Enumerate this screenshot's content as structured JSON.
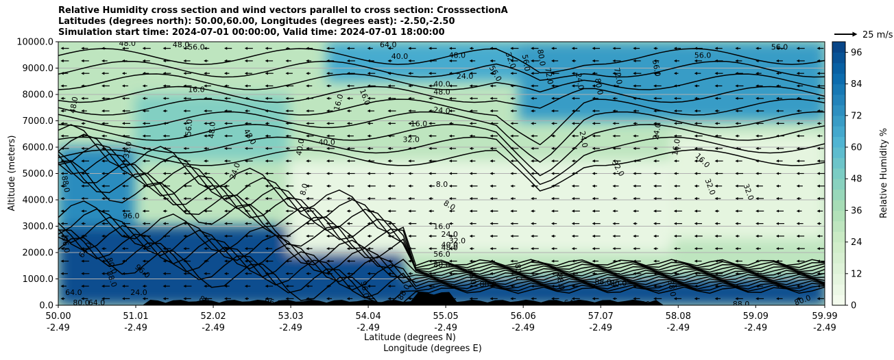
{
  "chart_data": {
    "type": "heatmap",
    "title_lines": [
      "Relative Humidity cross section and wind vectors parallel to cross section: CrosssectionA",
      "Latitudes (degrees north): 50.00,60.00, Longitudes (degrees east): -2.50,-2.50",
      "Simulation start time: 2024-07-01 00:00:00, Valid time: 2024-07-01 18:00:00"
    ],
    "xlabel_lines": [
      "Latitude (degrees N)",
      "Longitude (degrees E)"
    ],
    "ylabel": "Altitude (meters)",
    "colorbar_label": "Relative Humidity %",
    "colormap": "GnBu",
    "x_ticks": [
      {
        "lat": "50.00",
        "lon": "-2.49"
      },
      {
        "lat": "51.01",
        "lon": "-2.49"
      },
      {
        "lat": "52.02",
        "lon": "-2.49"
      },
      {
        "lat": "53.03",
        "lon": "-2.49"
      },
      {
        "lat": "54.04",
        "lon": "-2.49"
      },
      {
        "lat": "55.05",
        "lon": "-2.49"
      },
      {
        "lat": "56.06",
        "lon": "-2.49"
      },
      {
        "lat": "57.07",
        "lon": "-2.49"
      },
      {
        "lat": "58.08",
        "lon": "-2.49"
      },
      {
        "lat": "59.09",
        "lon": "-2.49"
      },
      {
        "lat": "59.99",
        "lon": "-2.49"
      }
    ],
    "xlim": [
      50.0,
      59.99
    ],
    "y_ticks": [
      "0.0",
      "1000.0",
      "2000.0",
      "3000.0",
      "4000.0",
      "5000.0",
      "6000.0",
      "7000.0",
      "8000.0",
      "9000.0",
      "10000.0"
    ],
    "ylim": [
      0,
      10000
    ],
    "grid": "horizontal",
    "colorbar_ticks": [
      "0",
      "12",
      "24",
      "36",
      "48",
      "60",
      "72",
      "84",
      "96"
    ],
    "colorbar_range": [
      0,
      100
    ],
    "quiver_key": {
      "label": "25 m/s",
      "speed": 25
    },
    "wind_direction": "southward (toward lower latitude) along the section",
    "humidity_regions": [
      {
        "lat": [
          50.0,
          54.5
        ],
        "alt": [
          0,
          3000
        ],
        "rh": 96
      },
      {
        "lat": [
          54.5,
          60.0
        ],
        "alt": [
          0,
          1000
        ],
        "rh": 96
      },
      {
        "lat": [
          50.0,
          51.0
        ],
        "alt": [
          3000,
          6000
        ],
        "rh": 75
      },
      {
        "lat": [
          53.0,
          58.0
        ],
        "alt": [
          2000,
          5500
        ],
        "rh": 8
      },
      {
        "lat": [
          56.0,
          60.0
        ],
        "alt": [
          7000,
          10000
        ],
        "rh": 70
      },
      {
        "lat": [
          53.5,
          56.0
        ],
        "alt": [
          8500,
          10000
        ],
        "rh": 65
      },
      {
        "lat": [
          51.0,
          53.0
        ],
        "alt": [
          5500,
          8000
        ],
        "rh": 48
      },
      {
        "lat": [
          58.0,
          60.0
        ],
        "alt": [
          2500,
          6500
        ],
        "rh": 10
      }
    ],
    "contour_labels": [
      {
        "text": "48.0",
        "lat": 50.2,
        "alt": 7600,
        "rot": 80
      },
      {
        "text": "16.0",
        "lat": 51.8,
        "alt": 8200,
        "rot": 0
      },
      {
        "text": "56.0",
        "lat": 51.7,
        "alt": 6750,
        "rot": 85
      },
      {
        "text": "48.0",
        "lat": 52.0,
        "alt": 6650,
        "rot": 85
      },
      {
        "text": "48.0",
        "lat": 52.5,
        "alt": 6400,
        "rot": -60
      },
      {
        "text": "32.0",
        "lat": 50.9,
        "alt": 5900,
        "rot": 80
      },
      {
        "text": "40.0",
        "lat": 53.5,
        "alt": 6200,
        "rot": 0
      },
      {
        "text": "40.0",
        "lat": 53.15,
        "alt": 6000,
        "rot": 80
      },
      {
        "text": "24.0",
        "lat": 52.3,
        "alt": 5100,
        "rot": 70
      },
      {
        "text": "8.0",
        "lat": 53.2,
        "alt": 4400,
        "rot": 75
      },
      {
        "text": "32.0",
        "lat": 54.6,
        "alt": 6300,
        "rot": 0
      },
      {
        "text": "16.0",
        "lat": 54.0,
        "alt": 7900,
        "rot": -70
      },
      {
        "text": "16.0",
        "lat": 53.65,
        "alt": 7700,
        "rot": 75
      },
      {
        "text": "24.0",
        "lat": 55.0,
        "alt": 7400,
        "rot": -5
      },
      {
        "text": "40.0",
        "lat": 55.0,
        "alt": 8400,
        "rot": 0
      },
      {
        "text": "48.0",
        "lat": 55.0,
        "alt": 8100,
        "rot": 0
      },
      {
        "text": "24.0",
        "lat": 55.3,
        "alt": 8700,
        "rot": 0
      },
      {
        "text": "48.0",
        "lat": 55.2,
        "alt": 9500,
        "rot": 0
      },
      {
        "text": "64.0",
        "lat": 54.3,
        "alt": 9900,
        "rot": 0
      },
      {
        "text": "56.0",
        "lat": 51.8,
        "alt": 9800,
        "rot": 0
      },
      {
        "text": "48.0",
        "lat": 51.6,
        "alt": 9900,
        "rot": 0
      },
      {
        "text": "48.0",
        "lat": 50.9,
        "alt": 9950,
        "rot": 0
      },
      {
        "text": "8.0",
        "lat": 55.0,
        "alt": 4600,
        "rot": 0
      },
      {
        "text": "8.0",
        "lat": 55.1,
        "alt": 3800,
        "rot": -30
      },
      {
        "text": "16.0",
        "lat": 55.0,
        "alt": 3000,
        "rot": 0
      },
      {
        "text": "24.0",
        "lat": 55.1,
        "alt": 2700,
        "rot": 0
      },
      {
        "text": "32.0",
        "lat": 55.2,
        "alt": 2450,
        "rot": 0
      },
      {
        "text": "40.0",
        "lat": 55.1,
        "alt": 2300,
        "rot": 0
      },
      {
        "text": "48.0",
        "lat": 55.1,
        "alt": 2200,
        "rot": 0
      },
      {
        "text": "56.0",
        "lat": 55.0,
        "alt": 1950,
        "rot": 0
      },
      {
        "text": "80.0",
        "lat": 55.0,
        "alt": 1550,
        "rot": 0
      },
      {
        "text": "96.0",
        "lat": 50.95,
        "alt": 3400,
        "rot": 0
      },
      {
        "text": "88.0",
        "lat": 50.1,
        "alt": 4600,
        "rot": -80
      },
      {
        "text": "96.0",
        "lat": 50.1,
        "alt": 2300,
        "rot": -80
      },
      {
        "text": "64.0",
        "lat": 50.35,
        "alt": 2100,
        "rot": 55
      },
      {
        "text": "80.0",
        "lat": 50.7,
        "alt": 1500,
        "rot": -70
      },
      {
        "text": "96.0",
        "lat": 51.1,
        "alt": 1300,
        "rot": -40
      },
      {
        "text": "88.0",
        "lat": 50.7,
        "alt": 1000,
        "rot": -70
      },
      {
        "text": "64.0",
        "lat": 50.2,
        "alt": 500,
        "rot": 0
      },
      {
        "text": "80.0",
        "lat": 50.3,
        "alt": 100,
        "rot": 0
      },
      {
        "text": "64.0",
        "lat": 50.5,
        "alt": 100,
        "rot": 0
      },
      {
        "text": "24.0",
        "lat": 51.05,
        "alt": 500,
        "rot": 0
      },
      {
        "text": "88",
        "lat": 51.9,
        "alt": 200,
        "rot": -30
      },
      {
        "text": "96.0",
        "lat": 52.8,
        "alt": 120,
        "rot": -10
      },
      {
        "text": "96.0",
        "lat": 54.0,
        "alt": 600,
        "rot": -80
      },
      {
        "text": "88.0",
        "lat": 54.5,
        "alt": 500,
        "rot": 60
      },
      {
        "text": "96.0",
        "lat": 55.4,
        "alt": 1100,
        "rot": -80
      },
      {
        "text": "80.0",
        "lat": 56.0,
        "alt": 1250,
        "rot": -85
      },
      {
        "text": "88.0",
        "lat": 55.6,
        "alt": 800,
        "rot": 0
      },
      {
        "text": "88.0",
        "lat": 56.55,
        "alt": 900,
        "rot": -80
      },
      {
        "text": "64.0",
        "lat": 56.7,
        "alt": 100,
        "rot": 0
      },
      {
        "text": "88.0",
        "lat": 57.1,
        "alt": 900,
        "rot": 0
      },
      {
        "text": "80.0",
        "lat": 57.3,
        "alt": 850,
        "rot": 0
      },
      {
        "text": "88.0",
        "lat": 58.0,
        "alt": 650,
        "rot": -80
      },
      {
        "text": "88.0",
        "lat": 58.9,
        "alt": 50,
        "rot": 0
      },
      {
        "text": "80.0",
        "lat": 57.7,
        "alt": 50,
        "rot": 0
      },
      {
        "text": "80.0",
        "lat": 59.7,
        "alt": 200,
        "rot": 20
      },
      {
        "text": "24.0",
        "lat": 56.85,
        "alt": 6300,
        "rot": -80
      },
      {
        "text": "32.0",
        "lat": 57.3,
        "alt": 5200,
        "rot": -60
      },
      {
        "text": "24.0",
        "lat": 57.8,
        "alt": 6600,
        "rot": 80
      },
      {
        "text": "16.0",
        "lat": 58.05,
        "alt": 6000,
        "rot": 80
      },
      {
        "text": "16.0",
        "lat": 58.4,
        "alt": 5500,
        "rot": -45
      },
      {
        "text": "32.0",
        "lat": 58.5,
        "alt": 4500,
        "rot": -70
      },
      {
        "text": "32.0",
        "lat": 59.0,
        "alt": 4300,
        "rot": -70
      },
      {
        "text": "56.0",
        "lat": 58.4,
        "alt": 9500,
        "rot": 0
      },
      {
        "text": "56.0",
        "lat": 59.4,
        "alt": 9800,
        "rot": 0
      },
      {
        "text": "56.0",
        "lat": 57.8,
        "alt": 9000,
        "rot": -80
      },
      {
        "text": "72.0",
        "lat": 57.3,
        "alt": 8700,
        "rot": -80
      },
      {
        "text": "80.0",
        "lat": 57.05,
        "alt": 8300,
        "rot": -80
      },
      {
        "text": "24.0",
        "lat": 56.8,
        "alt": 8500,
        "rot": -80
      },
      {
        "text": "72.0",
        "lat": 56.4,
        "alt": 8700,
        "rot": -80
      },
      {
        "text": "80.0",
        "lat": 56.3,
        "alt": 9400,
        "rot": -80
      },
      {
        "text": "56.0",
        "lat": 56.1,
        "alt": 9200,
        "rot": -80
      },
      {
        "text": "56.0",
        "lat": 55.7,
        "alt": 8800,
        "rot": -60
      },
      {
        "text": "32.0",
        "lat": 55.9,
        "alt": 9300,
        "rot": -70
      },
      {
        "text": "16.0",
        "lat": 54.7,
        "alt": 6900,
        "rot": 0
      },
      {
        "text": "40.0",
        "lat": 54.45,
        "alt": 9450,
        "rot": 0
      }
    ]
  }
}
